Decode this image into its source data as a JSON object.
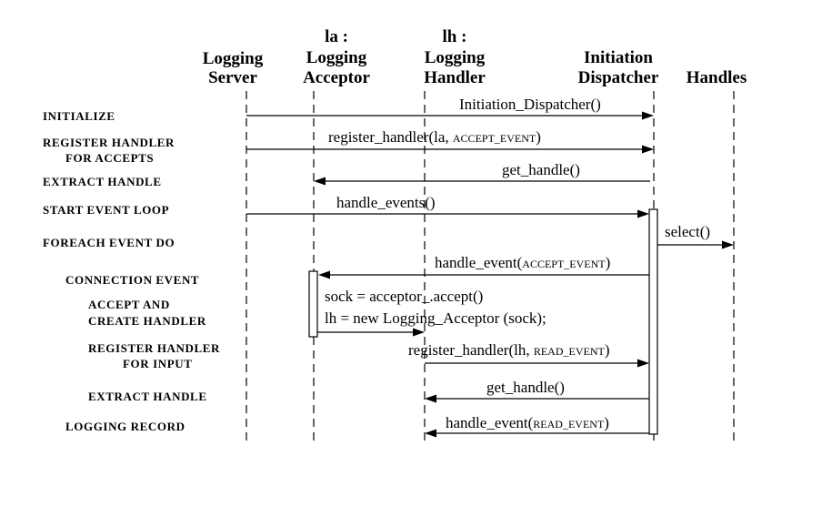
{
  "participants": [
    {
      "id": "server",
      "line1": "",
      "line2": "Logging",
      "line3": "Server"
    },
    {
      "id": "acceptor",
      "line1": "la :",
      "line2": "Logging",
      "line3": "Acceptor"
    },
    {
      "id": "handler",
      "line1": "lh :",
      "line2": "Logging",
      "line3": "Handler"
    },
    {
      "id": "dispatcher",
      "line1": "",
      "line2": "Initiation",
      "line3": "Dispatcher"
    },
    {
      "id": "handles",
      "line1": "",
      "line2": "",
      "line3": "Handles"
    }
  ],
  "steps": [
    {
      "label": "INITIALIZE"
    },
    {
      "label": "REGISTER HANDLER"
    },
    {
      "label": "FOR ACCEPTS"
    },
    {
      "label": "EXTRACT HANDLE"
    },
    {
      "label": "START EVENT LOOP"
    },
    {
      "label": "FOREACH EVENT DO"
    },
    {
      "label": "CONNECTION EVENT"
    },
    {
      "label": "ACCEPT AND"
    },
    {
      "label": "CREATE HANDLER"
    },
    {
      "label": "REGISTER HANDLER"
    },
    {
      "label": "FOR INPUT"
    },
    {
      "label": "EXTRACT HANDLE"
    },
    {
      "label": "LOGGING RECORD"
    }
  ],
  "messages": [
    {
      "from": "server",
      "to": "dispatcher",
      "text": "Initiation_Dispatcher()",
      "small": ""
    },
    {
      "from": "server",
      "to": "dispatcher",
      "text": "register_handler(la, ",
      "small": "ACCEPT_EVENT",
      "close": ")"
    },
    {
      "from": "dispatcher",
      "to": "acceptor",
      "text": "get_handle()",
      "small": ""
    },
    {
      "from": "server",
      "to": "dispatcher",
      "text": "handle_events()",
      "small": ""
    },
    {
      "from": "dispatcher",
      "to": "handles",
      "text": "select()",
      "small": ""
    },
    {
      "from": "dispatcher",
      "to": "acceptor",
      "text": "handle_event(",
      "small": "ACCEPT_EVENT",
      "close": ")"
    },
    {
      "from": "acceptor",
      "to": "handler",
      "text": "",
      "small": ""
    },
    {
      "from": "handler",
      "to": "dispatcher",
      "text": "register_handler(lh, ",
      "small": "READ_EVENT",
      "close": ")"
    },
    {
      "from": "dispatcher",
      "to": "handler",
      "text": "get_handle()",
      "small": ""
    },
    {
      "from": "dispatcher",
      "to": "handler",
      "text": "handle_event(",
      "small": "READ_EVENT",
      "close": ")"
    }
  ],
  "notes": [
    {
      "text": "sock = acceptor_.accept()"
    },
    {
      "text": "lh = new Logging_Acceptor (sock);"
    }
  ]
}
